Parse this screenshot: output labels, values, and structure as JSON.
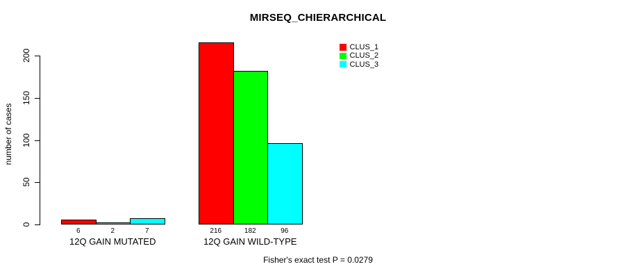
{
  "title": "MIRSEQ_CHIERARCHICAL",
  "footer": "Fisher's exact test P = 0.0279",
  "colors": {
    "background": "#ffffff",
    "axis": "#000000",
    "bar_border": "#000000",
    "text": "#000000",
    "clus_1": "#ff0000",
    "clus_2": "#00ff00",
    "clus_3": "#00ffff"
  },
  "chart_data": {
    "type": "bar",
    "title": "MIRSEQ_CHIERARCHICAL",
    "xlabel": "",
    "ylabel": "number of cases",
    "ylim": [
      0,
      220
    ],
    "yticks": [
      0,
      50,
      100,
      150,
      200
    ],
    "grid": false,
    "legend_position": "top-right-inside",
    "categories": [
      "12Q GAIN MUTATED",
      "12Q GAIN WILD-TYPE"
    ],
    "series": [
      {
        "name": "CLUS_1",
        "color": "#ff0000",
        "values": [
          6,
          216
        ]
      },
      {
        "name": "CLUS_2",
        "color": "#00ff00",
        "values": [
          2,
          182
        ]
      },
      {
        "name": "CLUS_3",
        "color": "#00ffff",
        "values": [
          7,
          96
        ]
      }
    ],
    "bar_value_labels": [
      [
        6,
        2,
        7
      ],
      [
        216,
        182,
        96
      ]
    ],
    "annotation": "Fisher's exact test P = 0.0279"
  }
}
